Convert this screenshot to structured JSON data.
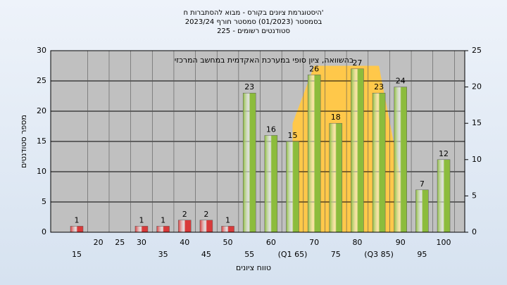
{
  "chart_data": {
    "type": "bar",
    "title": "היסטוגרמת ציונים בקורס - מבוא להסתברות ח'",
    "subtitle": "בסמסטר (01/2023) סמסטר חורף 2023/24",
    "subtitle2": "סטודנטים רשומים - 225",
    "annotation": "בהשוואה, ציון סופי במערכת האקדמית במחשב המרכזי",
    "x_label": "טווח ציונים",
    "y_label": "מספר סטודנטים",
    "categories": [
      "15",
      "20",
      "25",
      "30",
      "35",
      "40",
      "45",
      "50",
      "55",
      "60",
      "(Q1 65)",
      "70",
      "75",
      "80",
      "(Q3 85)",
      "90",
      "95",
      "100"
    ],
    "values": [
      1,
      0,
      0,
      1,
      1,
      2,
      2,
      1,
      23,
      16,
      15,
      26,
      18,
      27,
      23,
      24,
      7,
      12
    ],
    "colors": [
      "#d83a3a",
      "#d83a3a",
      "#d83a3a",
      "#d83a3a",
      "#d83a3a",
      "#d83a3a",
      "#d83a3a",
      "#d83a3a",
      "#8cbc3c",
      "#8cbc3c",
      "#8cbc3c",
      "#8cbc3c",
      "#8cbc3c",
      "#8cbc3c",
      "#8cbc3c",
      "#8cbc3c",
      "#8cbc3c",
      "#8cbc3c"
    ],
    "area": {
      "x": [
        65,
        70,
        85,
        90
      ],
      "values": [
        18,
        27.5,
        27.5,
        9
      ],
      "color": "#ffc84a"
    },
    "ylim": [
      0,
      30
    ],
    "yticks": [
      0,
      5,
      10,
      15,
      20,
      25,
      30
    ],
    "y2lim": [
      0,
      25
    ],
    "y2ticks": [
      0,
      5,
      10,
      15,
      20,
      25
    ],
    "grid": true
  }
}
